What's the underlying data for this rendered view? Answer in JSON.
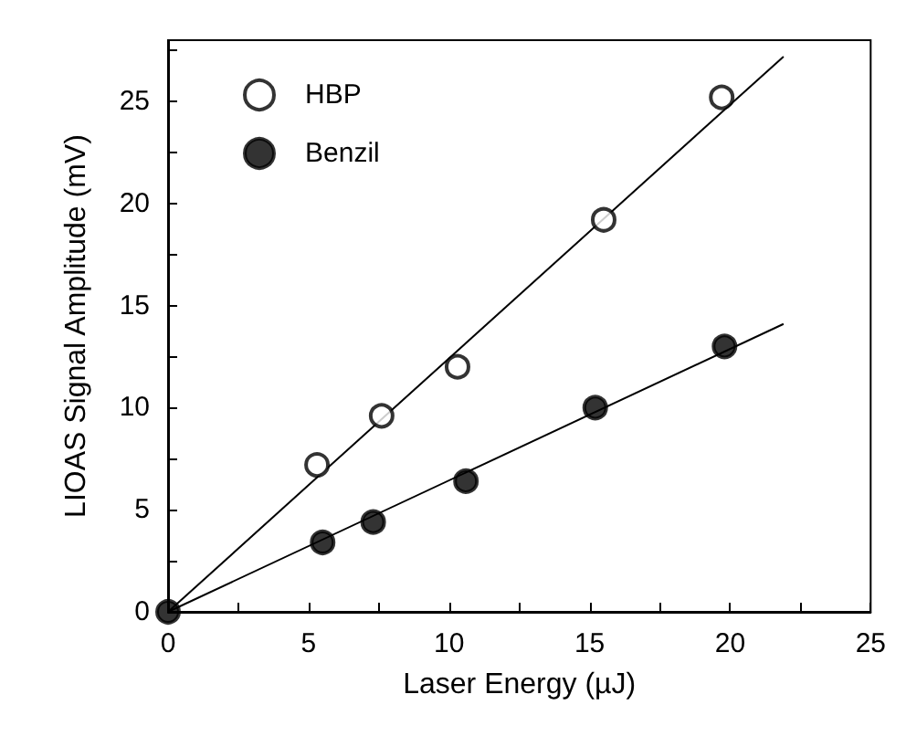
{
  "chart_data": {
    "type": "scatter",
    "xlabel": "Laser Energy (µJ)",
    "ylabel": "LIOAS Signal Amplitude (mV)",
    "xlim": [
      0,
      25
    ],
    "ylim": [
      0,
      28
    ],
    "xticks": [
      0,
      {
        "value": 2.5,
        "label": null
      },
      5,
      {
        "value": 7.5,
        "label": null
      },
      10,
      {
        "value": 12.5,
        "label": null
      },
      15,
      {
        "value": 17.5,
        "label": null
      },
      20,
      {
        "value": 22.5,
        "label": null
      },
      25
    ],
    "yticks": [
      0,
      {
        "value": 2.5,
        "label": null
      },
      5,
      {
        "value": 7.5,
        "label": null
      },
      10,
      {
        "value": 12.5,
        "label": null
      },
      15,
      {
        "value": 17.5,
        "label": null
      },
      20,
      {
        "value": 22.5,
        "label": null
      },
      25,
      {
        "value": 27.5,
        "label": null
      }
    ],
    "legend": "top left",
    "grid": false,
    "marker": "circle",
    "series": [
      {
        "name": "HBP",
        "color": "#ffffff",
        "x": [
          5.3,
          7.6,
          10.3,
          15.5,
          19.7
        ],
        "values": [
          7.2,
          9.6,
          12.0,
          19.2,
          25.2
        ]
      },
      {
        "name": "Benzil",
        "color": "#000000",
        "x": [
          0,
          5.5,
          7.3,
          10.6,
          15.2,
          19.8
        ],
        "values": [
          0,
          3.4,
          4.4,
          6.4,
          10.0,
          13.0
        ]
      },
      {
        "type": "line",
        "color": "#000000",
        "marker": "none",
        "x": [
          0,
          21.9
        ],
        "values": [
          0,
          27.2
        ]
      },
      {
        "type": "line",
        "color": "#000000",
        "marker": "none",
        "x": [
          0,
          21.9
        ],
        "values": [
          0,
          14.1
        ]
      }
    ]
  }
}
